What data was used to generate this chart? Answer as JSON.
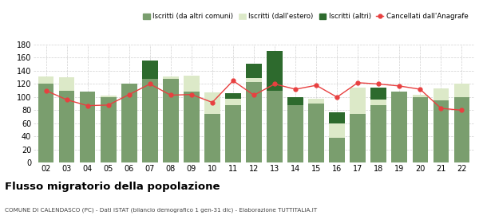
{
  "years": [
    "02",
    "03",
    "04",
    "05",
    "06",
    "07",
    "08",
    "09",
    "10",
    "11",
    "12",
    "13",
    "14",
    "15",
    "16",
    "17",
    "18",
    "19",
    "20",
    "21",
    "22"
  ],
  "iscritti_comuni": [
    120,
    110,
    108,
    100,
    120,
    128,
    128,
    108,
    75,
    88,
    123,
    110,
    88,
    90,
    38,
    75,
    88,
    108,
    100,
    95,
    100
  ],
  "iscritti_estero": [
    12,
    20,
    0,
    2,
    0,
    0,
    4,
    25,
    32,
    10,
    6,
    0,
    0,
    8,
    22,
    40,
    8,
    0,
    4,
    18,
    20
  ],
  "iscritti_altri": [
    0,
    0,
    0,
    0,
    0,
    28,
    0,
    0,
    0,
    8,
    22,
    60,
    12,
    0,
    17,
    0,
    18,
    0,
    0,
    0,
    0
  ],
  "cancellati": [
    110,
    96,
    87,
    88,
    104,
    120,
    103,
    104,
    92,
    125,
    103,
    120,
    112,
    118,
    100,
    122,
    120,
    117,
    112,
    83,
    80
  ],
  "color_comuni": "#7a9e6e",
  "color_estero": "#dce9c8",
  "color_altri": "#2d6a2d",
  "color_cancellati": "#e84040",
  "ylim": [
    0,
    180
  ],
  "yticks": [
    0,
    20,
    40,
    60,
    80,
    100,
    120,
    140,
    160,
    180
  ],
  "title": "Flusso migratorio della popolazione",
  "subtitle": "COMUNE DI CALENDASCO (PC) - Dati ISTAT (bilancio demografico 1 gen-31 dic) - Elaborazione TUTTITALIA.IT",
  "legend_labels": [
    "Iscritti (da altri comuni)",
    "Iscritti (dall'estero)",
    "Iscritti (altri)",
    "Cancellati dall'Anagrafe"
  ],
  "grid_color": "#d0d0d0"
}
